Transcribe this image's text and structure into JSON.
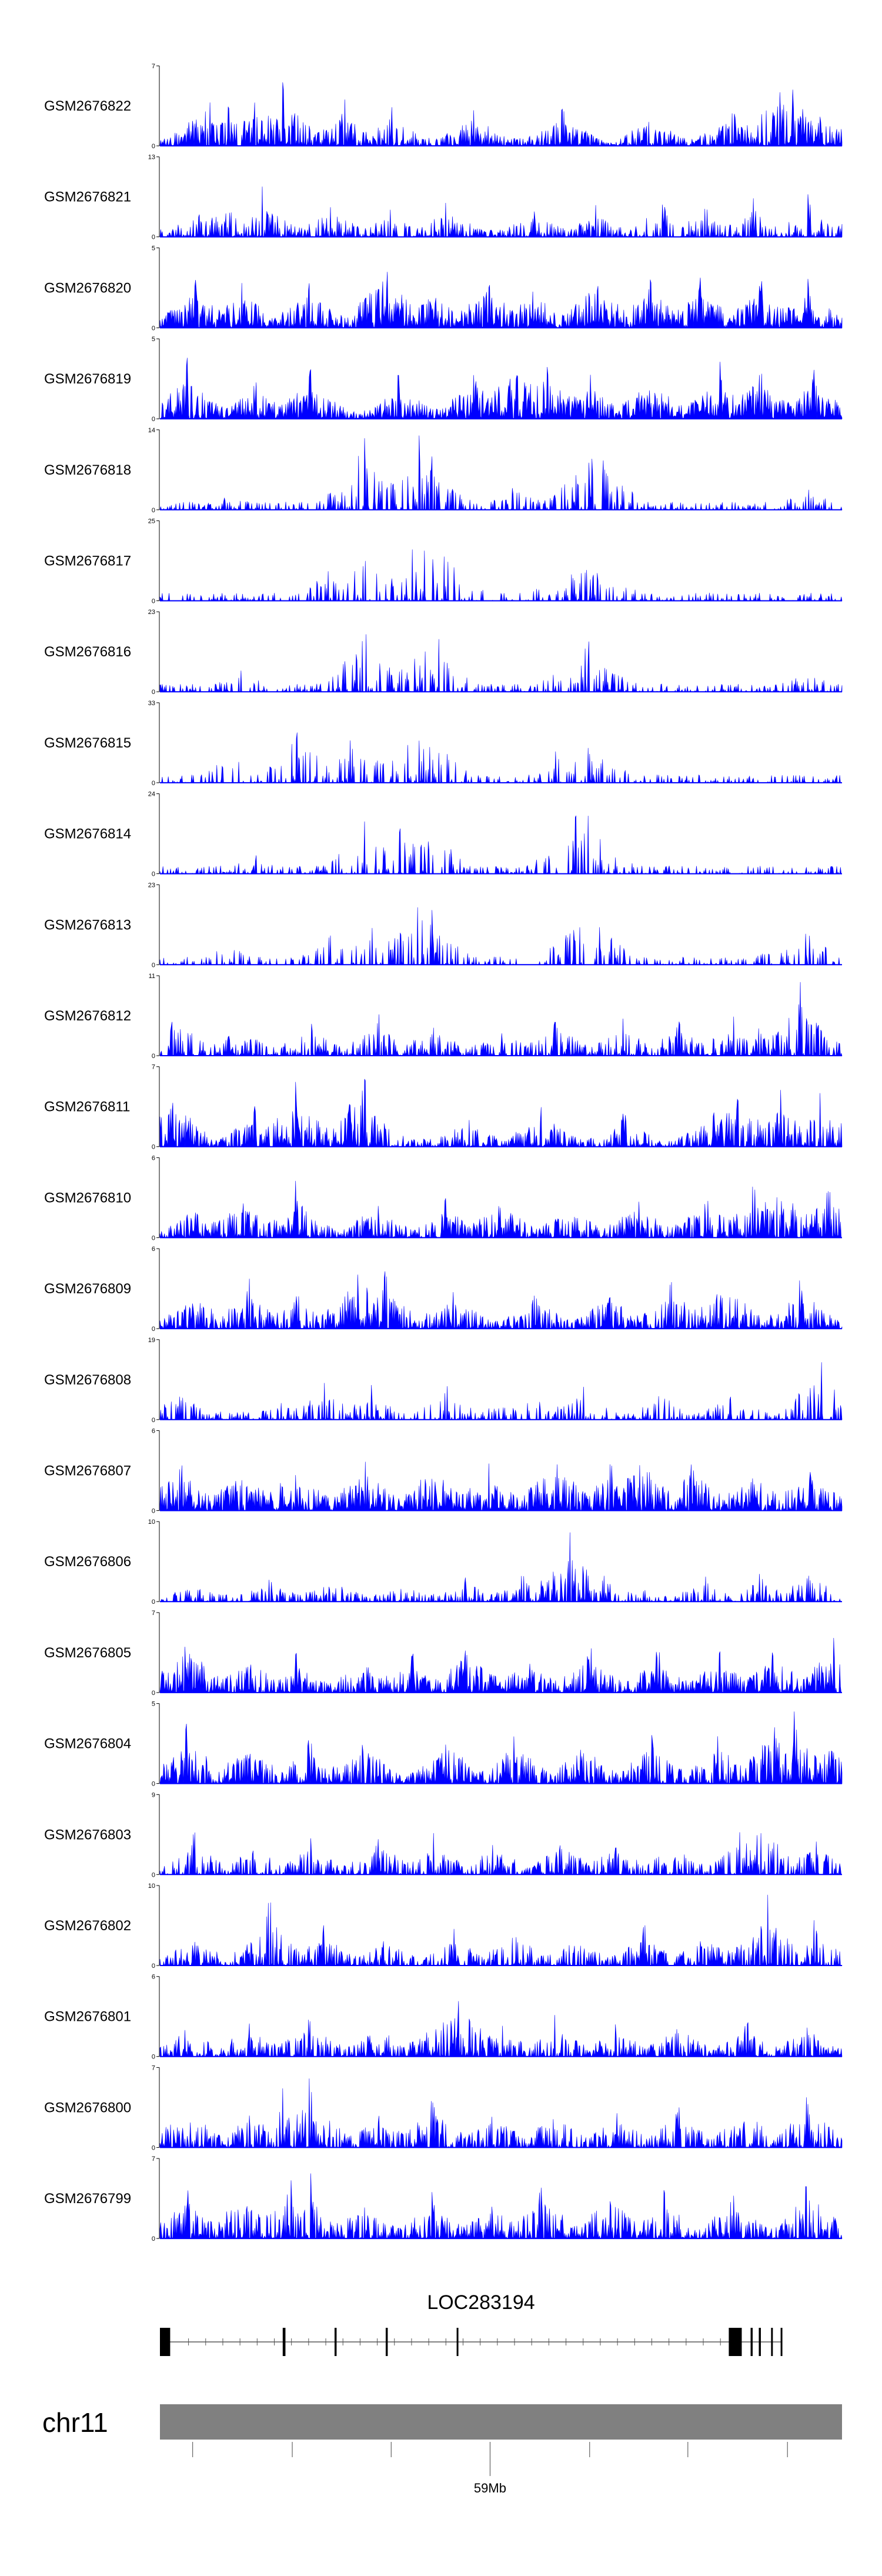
{
  "chart_data": {
    "type": "area",
    "title": "",
    "xlabel": "",
    "ylabel": "",
    "grid": false,
    "legend": "none",
    "series_color": "#0000FF",
    "samples": [
      {
        "name": "GSM2676822",
        "ymax": "7",
        "ymin": "0",
        "ylim": [
          0,
          7
        ],
        "peaks": [
          0.07,
          0.1,
          0.14,
          0.18,
          0.27,
          0.34,
          0.46,
          0.59,
          0.72,
          0.84,
          0.91,
          0.93,
          0.96
        ],
        "heights": [
          0.75,
          0.55,
          0.65,
          0.85,
          0.6,
          0.5,
          0.55,
          0.55,
          0.5,
          0.6,
          1.0,
          0.9,
          0.7
        ],
        "density": 0.85
      },
      {
        "name": "GSM2676821",
        "ymax": "13",
        "ymin": "0",
        "ylim": [
          0,
          13
        ],
        "peaks": [
          0.06,
          0.1,
          0.15,
          0.25,
          0.34,
          0.42,
          0.55,
          0.64,
          0.74,
          0.8,
          0.87,
          0.95,
          0.99
        ],
        "heights": [
          0.45,
          0.55,
          0.65,
          0.5,
          0.4,
          0.5,
          0.45,
          0.45,
          0.6,
          0.4,
          0.5,
          0.55,
          0.35
        ],
        "density": 0.65
      },
      {
        "name": "GSM2676820",
        "ymax": "5",
        "ymin": "0",
        "ylim": [
          0,
          5
        ],
        "peaks": [
          0.05,
          0.12,
          0.22,
          0.33,
          0.4,
          0.48,
          0.55,
          0.64,
          0.72,
          0.79,
          0.88,
          0.95
        ],
        "heights": [
          0.7,
          0.65,
          0.7,
          1.0,
          0.7,
          0.75,
          0.65,
          0.85,
          0.7,
          0.75,
          0.7,
          0.65
        ],
        "density": 1.0
      },
      {
        "name": "GSM2676819",
        "ymax": "5",
        "ymin": "0",
        "ylim": [
          0,
          5
        ],
        "peaks": [
          0.04,
          0.14,
          0.22,
          0.35,
          0.46,
          0.52,
          0.57,
          0.63,
          0.72,
          0.82,
          0.88,
          0.96
        ],
        "heights": [
          0.8,
          0.55,
          0.7,
          0.6,
          0.75,
          1.0,
          0.9,
          0.65,
          0.7,
          0.75,
          0.8,
          0.7
        ],
        "density": 1.0
      },
      {
        "name": "GSM2676818",
        "ymax": "14",
        "ymin": "0",
        "ylim": [
          0,
          14
        ],
        "peaks": [
          0.1,
          0.29,
          0.3,
          0.34,
          0.38,
          0.4,
          0.52,
          0.62,
          0.63,
          0.65,
          0.95
        ],
        "heights": [
          0.3,
          0.8,
          0.95,
          0.7,
          1.0,
          0.75,
          0.4,
          0.8,
          1.0,
          0.85,
          0.35
        ],
        "density": 0.45
      },
      {
        "name": "GSM2676817",
        "ymax": "25",
        "ymin": "0",
        "ylim": [
          0,
          25
        ],
        "peaks": [
          0.25,
          0.29,
          0.3,
          0.37,
          0.39,
          0.42,
          0.58,
          0.6,
          0.63,
          0.66
        ],
        "heights": [
          0.55,
          0.7,
          0.8,
          0.75,
          1.0,
          0.8,
          0.45,
          0.55,
          0.75,
          0.5
        ],
        "density": 0.35
      },
      {
        "name": "GSM2676816",
        "ymax": "23",
        "ymin": "0",
        "ylim": [
          0,
          23
        ],
        "peaks": [
          0.12,
          0.3,
          0.3,
          0.37,
          0.39,
          0.41,
          0.6,
          0.62,
          0.63,
          0.65,
          0.95
        ],
        "heights": [
          0.35,
          0.75,
          1.0,
          0.6,
          0.8,
          0.7,
          0.5,
          0.75,
          0.65,
          0.55,
          0.35
        ],
        "density": 0.4
      },
      {
        "name": "GSM2676815",
        "ymax": "33",
        "ymin": "0",
        "ylim": [
          0,
          33
        ],
        "peaks": [
          0.11,
          0.2,
          0.28,
          0.31,
          0.37,
          0.39,
          0.41,
          0.58,
          0.6,
          0.62,
          0.64
        ],
        "heights": [
          0.55,
          0.9,
          0.6,
          0.65,
          1.0,
          0.85,
          0.75,
          0.5,
          0.65,
          0.95,
          0.6
        ],
        "density": 0.35
      },
      {
        "name": "GSM2676814",
        "ymax": "24",
        "ymin": "0",
        "ylim": [
          0,
          24
        ],
        "peaks": [
          0.14,
          0.29,
          0.3,
          0.35,
          0.38,
          0.4,
          0.58,
          0.61,
          0.63,
          0.65
        ],
        "heights": [
          0.3,
          0.55,
          0.85,
          0.65,
          0.85,
          0.75,
          0.45,
          0.75,
          1.0,
          0.6
        ],
        "density": 0.4
      },
      {
        "name": "GSM2676813",
        "ymax": "23",
        "ymin": "0",
        "ylim": [
          0,
          23
        ],
        "peaks": [
          0.1,
          0.25,
          0.31,
          0.36,
          0.38,
          0.4,
          0.61,
          0.63,
          0.65,
          0.9,
          0.95
        ],
        "heights": [
          0.35,
          0.45,
          0.65,
          0.7,
          1.0,
          0.75,
          0.75,
          1.0,
          0.55,
          0.35,
          0.55
        ],
        "density": 0.35
      },
      {
        "name": "GSM2676812",
        "ymax": "11",
        "ymin": "0",
        "ylim": [
          0,
          11
        ],
        "peaks": [
          0.02,
          0.12,
          0.22,
          0.32,
          0.4,
          0.5,
          0.58,
          0.68,
          0.76,
          0.84,
          0.88,
          0.94
        ],
        "heights": [
          0.7,
          0.55,
          0.5,
          0.55,
          0.5,
          0.45,
          0.55,
          0.5,
          0.5,
          0.55,
          0.5,
          1.0
        ],
        "density": 0.7
      },
      {
        "name": "GSM2676811",
        "ymax": "7",
        "ymin": "0",
        "ylim": [
          0,
          7
        ],
        "peaks": [
          0.02,
          0.14,
          0.2,
          0.28,
          0.3,
          0.45,
          0.56,
          0.68,
          0.81,
          0.85,
          0.91,
          0.97
        ],
        "heights": [
          0.85,
          0.6,
          0.9,
          0.75,
          1.0,
          0.5,
          0.6,
          0.5,
          0.55,
          0.9,
          0.75,
          0.8
        ],
        "density": 0.8
      },
      {
        "name": "GSM2676810",
        "ymax": "6",
        "ymin": "0",
        "ylim": [
          0,
          6
        ],
        "peaks": [
          0.05,
          0.12,
          0.2,
          0.32,
          0.42,
          0.5,
          0.6,
          0.7,
          0.8,
          0.87,
          0.91,
          0.98
        ],
        "heights": [
          0.55,
          0.65,
          0.75,
          0.6,
          0.55,
          0.65,
          0.55,
          0.6,
          0.65,
          0.7,
          1.0,
          0.75
        ],
        "density": 0.85
      },
      {
        "name": "GSM2676809",
        "ymax": "6",
        "ymin": "0",
        "ylim": [
          0,
          6
        ],
        "peaks": [
          0.05,
          0.13,
          0.2,
          0.27,
          0.29,
          0.33,
          0.43,
          0.55,
          0.66,
          0.75,
          0.83,
          0.94
        ],
        "heights": [
          0.6,
          0.65,
          0.55,
          0.8,
          1.0,
          0.75,
          0.65,
          0.55,
          0.6,
          0.7,
          0.85,
          0.7
        ],
        "density": 0.8
      },
      {
        "name": "GSM2676808",
        "ymax": "19",
        "ymin": "0",
        "ylim": [
          0,
          19
        ],
        "peaks": [
          0.02,
          0.18,
          0.24,
          0.31,
          0.42,
          0.51,
          0.56,
          0.62,
          0.73,
          0.84,
          0.97
        ],
        "heights": [
          0.55,
          0.3,
          0.55,
          0.45,
          0.45,
          0.35,
          0.45,
          0.5,
          0.5,
          0.45,
          1.0
        ],
        "density": 0.45
      },
      {
        "name": "GSM2676807",
        "ymax": "6",
        "ymin": "0",
        "ylim": [
          0,
          6
        ],
        "peaks": [
          0.03,
          0.12,
          0.2,
          0.3,
          0.4,
          0.48,
          0.58,
          0.66,
          0.7,
          0.78,
          0.87,
          0.95
        ],
        "heights": [
          0.75,
          0.7,
          0.8,
          0.75,
          0.8,
          0.7,
          0.9,
          0.7,
          1.0,
          0.75,
          0.7,
          0.8
        ],
        "density": 0.95
      },
      {
        "name": "GSM2676806",
        "ymax": "10",
        "ymin": "0",
        "ylim": [
          0,
          10
        ],
        "peaks": [
          0.05,
          0.16,
          0.25,
          0.36,
          0.45,
          0.53,
          0.6,
          0.65,
          0.7,
          0.8,
          0.88,
          0.95
        ],
        "heights": [
          0.3,
          0.35,
          0.4,
          0.3,
          0.35,
          0.45,
          1.0,
          0.45,
          0.3,
          0.35,
          0.4,
          0.5
        ],
        "density": 0.55
      },
      {
        "name": "GSM2676805",
        "ymax": "7",
        "ymin": "0",
        "ylim": [
          0,
          7
        ],
        "peaks": [
          0.04,
          0.13,
          0.2,
          0.3,
          0.37,
          0.45,
          0.54,
          0.63,
          0.73,
          0.82,
          0.9,
          0.99
        ],
        "heights": [
          0.85,
          0.6,
          0.55,
          0.6,
          0.55,
          0.75,
          0.55,
          0.65,
          0.6,
          0.6,
          0.65,
          0.85
        ],
        "density": 0.9
      },
      {
        "name": "GSM2676804",
        "ymax": "5",
        "ymin": "0",
        "ylim": [
          0,
          5
        ],
        "peaks": [
          0.04,
          0.13,
          0.22,
          0.3,
          0.42,
          0.52,
          0.62,
          0.72,
          0.82,
          0.9,
          0.93,
          0.98
        ],
        "heights": [
          0.85,
          0.7,
          0.65,
          0.7,
          0.75,
          0.75,
          0.7,
          0.75,
          0.7,
          1.0,
          0.95,
          0.75
        ],
        "density": 0.85
      },
      {
        "name": "GSM2676803",
        "ymax": "9",
        "ymin": "0",
        "ylim": [
          0,
          9
        ],
        "peaks": [
          0.05,
          0.14,
          0.22,
          0.32,
          0.4,
          0.49,
          0.59,
          0.67,
          0.75,
          0.85,
          0.88,
          0.96
        ],
        "heights": [
          0.55,
          0.5,
          0.5,
          0.6,
          0.55,
          0.5,
          0.55,
          0.5,
          0.55,
          0.6,
          1.0,
          0.55
        ],
        "density": 0.7
      },
      {
        "name": "GSM2676802",
        "ymax": "10",
        "ymin": "0",
        "ylim": [
          0,
          10
        ],
        "peaks": [
          0.05,
          0.14,
          0.16,
          0.24,
          0.33,
          0.43,
          0.52,
          0.61,
          0.71,
          0.8,
          0.89,
          0.96
        ],
        "heights": [
          0.5,
          0.6,
          0.95,
          0.55,
          0.45,
          0.5,
          0.55,
          0.5,
          0.55,
          0.6,
          0.95,
          0.6
        ],
        "density": 0.7
      },
      {
        "name": "GSM2676801",
        "ymax": "6",
        "ymin": "0",
        "ylim": [
          0,
          6
        ],
        "peaks": [
          0.04,
          0.13,
          0.22,
          0.32,
          0.4,
          0.44,
          0.5,
          0.58,
          0.67,
          0.76,
          0.86,
          0.95
        ],
        "heights": [
          0.5,
          0.55,
          0.6,
          0.55,
          0.6,
          1.0,
          0.55,
          0.55,
          0.5,
          0.55,
          0.5,
          0.55
        ],
        "density": 0.75
      },
      {
        "name": "GSM2676800",
        "ymax": "7",
        "ymin": "0",
        "ylim": [
          0,
          7
        ],
        "peaks": [
          0.04,
          0.13,
          0.18,
          0.22,
          0.32,
          0.4,
          0.49,
          0.58,
          0.67,
          0.76,
          0.86,
          0.95
        ],
        "heights": [
          0.7,
          0.55,
          0.85,
          0.95,
          0.55,
          0.7,
          0.55,
          0.6,
          0.55,
          0.6,
          0.65,
          0.75
        ],
        "density": 0.75
      },
      {
        "name": "GSM2676799",
        "ymax": "7",
        "ymin": "0",
        "ylim": [
          0,
          7
        ],
        "peaks": [
          0.04,
          0.12,
          0.19,
          0.22,
          0.3,
          0.4,
          0.49,
          0.56,
          0.66,
          0.74,
          0.84,
          0.95
        ],
        "heights": [
          0.7,
          0.75,
          0.95,
          0.85,
          0.6,
          0.65,
          0.6,
          0.8,
          0.75,
          0.65,
          0.7,
          0.9
        ],
        "density": 0.8
      }
    ],
    "gene": {
      "name": "LOC283194",
      "strand": "-",
      "exons": [
        [
          0.0,
          0.015
        ],
        [
          0.18,
          0.184
        ],
        [
          0.256,
          0.259
        ],
        [
          0.331,
          0.334
        ],
        [
          0.435,
          0.437
        ],
        [
          0.834,
          0.853
        ],
        [
          0.866,
          0.869
        ],
        [
          0.878,
          0.881
        ],
        [
          0.896,
          0.898
        ],
        [
          0.91,
          0.912
        ]
      ],
      "chevron_count": 32
    },
    "chromosome": {
      "name": "chr11",
      "color": "#808080",
      "axis_label": "59Mb",
      "major_tick_fraction": 0.484,
      "minor_ticks": [
        0.048,
        0.194,
        0.339,
        0.63,
        0.774,
        0.92
      ]
    }
  }
}
